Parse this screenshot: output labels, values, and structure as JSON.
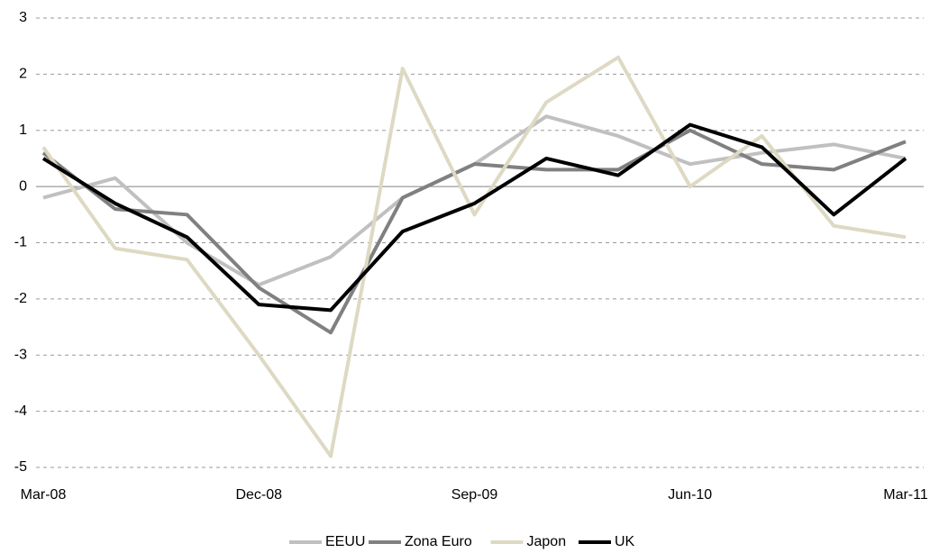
{
  "chart_data": {
    "type": "line",
    "categories": [
      "Mar-08",
      null,
      null,
      "Dec-08",
      null,
      null,
      "Sep-09",
      null,
      null,
      "Jun-10",
      null,
      null,
      "Mar-11"
    ],
    "series": [
      {
        "name": "EEUU",
        "color": "#c0c0c0",
        "values": [
          -0.2,
          0.15,
          -1.0,
          -1.75,
          -1.25,
          -0.2,
          0.4,
          1.25,
          0.9,
          0.4,
          0.6,
          0.75,
          0.5
        ]
      },
      {
        "name": "Zona Euro",
        "color": "#808080",
        "values": [
          0.6,
          -0.4,
          -0.5,
          -1.8,
          -2.6,
          -0.2,
          0.4,
          0.3,
          0.3,
          1.0,
          0.4,
          0.3,
          0.8
        ]
      },
      {
        "name": "Japon",
        "color": "#ddd9c3",
        "values": [
          0.7,
          -1.1,
          -1.3,
          -3.0,
          -4.8,
          2.1,
          -0.5,
          1.5,
          2.3,
          0.0,
          0.9,
          -0.7,
          -0.9
        ]
      },
      {
        "name": "UK",
        "color": "#000000",
        "values": [
          0.5,
          -0.3,
          -0.9,
          -2.1,
          -2.2,
          -0.8,
          -0.3,
          0.5,
          0.2,
          1.1,
          0.7,
          -0.5,
          0.5
        ]
      }
    ],
    "ylim": [
      -5,
      3
    ],
    "yticks": [
      -5,
      -4,
      -3,
      -2,
      -1,
      0,
      1,
      2,
      3
    ],
    "grid": true,
    "legend": "bottom"
  }
}
